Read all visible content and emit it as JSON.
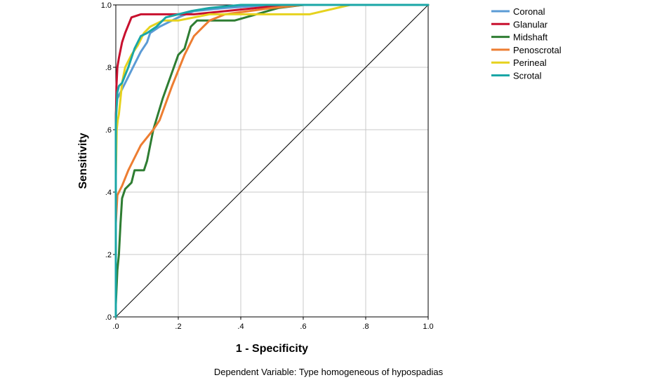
{
  "chart_data": {
    "type": "line",
    "title": "",
    "xlabel": "1 - Specificity",
    "ylabel": "Sensitivity",
    "footnote": "Dependent Variable: Type homogeneous of hypospadias",
    "xlim": [
      0,
      1
    ],
    "ylim": [
      0,
      1
    ],
    "grid": true,
    "legend_position": "top-right",
    "x_ticks": [
      0,
      0.2,
      0.4,
      0.6,
      0.8,
      1.0
    ],
    "x_tick_labels": [
      ".0",
      ".2",
      ".4",
      ".6",
      ".8",
      "1.0"
    ],
    "y_ticks": [
      0,
      0.2,
      0.4,
      0.6,
      0.8,
      1.0
    ],
    "y_tick_labels": [
      ".0",
      ".2",
      ".4",
      ".6",
      ".8",
      "1.0"
    ],
    "reference_line": {
      "x": [
        0,
        1
      ],
      "y": [
        0,
        1
      ],
      "color": "#000000"
    },
    "series": [
      {
        "name": "Coronal",
        "color": "#5b9bd5",
        "x": [
          0,
          0,
          0.005,
          0.02,
          0.04,
          0.06,
          0.08,
          0.1,
          0.11,
          0.14,
          0.2,
          0.25,
          0.35,
          0.5,
          0.6,
          1.0
        ],
        "y": [
          0,
          0.65,
          0.7,
          0.73,
          0.77,
          0.81,
          0.85,
          0.88,
          0.91,
          0.93,
          0.96,
          0.98,
          0.99,
          1.0,
          1.0,
          1.0
        ]
      },
      {
        "name": "Glanular",
        "color": "#c8102e",
        "x": [
          0,
          0,
          0.002,
          0.005,
          0.01,
          0.02,
          0.03,
          0.05,
          0.08,
          0.15,
          0.25,
          0.35,
          0.45,
          0.55,
          1.0
        ],
        "y": [
          0,
          0.62,
          0.74,
          0.8,
          0.83,
          0.88,
          0.91,
          0.96,
          0.97,
          0.97,
          0.97,
          0.98,
          0.99,
          1.0,
          1.0
        ]
      },
      {
        "name": "Midshaft",
        "color": "#2e7d32",
        "x": [
          0,
          0,
          0.005,
          0.01,
          0.015,
          0.02,
          0.03,
          0.05,
          0.06,
          0.09,
          0.1,
          0.12,
          0.15,
          0.2,
          0.22,
          0.24,
          0.26,
          0.3,
          0.38,
          0.45,
          0.52,
          0.6,
          1.0
        ],
        "y": [
          0,
          0.04,
          0.15,
          0.2,
          0.3,
          0.38,
          0.41,
          0.43,
          0.47,
          0.47,
          0.5,
          0.6,
          0.7,
          0.84,
          0.86,
          0.93,
          0.95,
          0.95,
          0.95,
          0.97,
          0.99,
          1.0,
          1.0
        ]
      },
      {
        "name": "Penoscrotal",
        "color": "#ed7d31",
        "x": [
          0,
          0,
          0.005,
          0.01,
          0.02,
          0.04,
          0.06,
          0.08,
          0.12,
          0.14,
          0.18,
          0.22,
          0.25,
          0.28,
          0.3,
          0.35,
          0.5,
          0.6,
          1.0
        ],
        "y": [
          0,
          0.3,
          0.39,
          0.4,
          0.42,
          0.47,
          0.51,
          0.55,
          0.6,
          0.63,
          0.74,
          0.84,
          0.9,
          0.93,
          0.95,
          0.97,
          0.99,
          1.0,
          1.0
        ]
      },
      {
        "name": "Perineal",
        "color": "#e6d21e",
        "x": [
          0,
          0,
          0.003,
          0.006,
          0.01,
          0.015,
          0.02,
          0.03,
          0.05,
          0.07,
          0.09,
          0.11,
          0.15,
          0.2,
          0.3,
          0.45,
          0.6,
          0.62,
          0.75,
          1.0
        ],
        "y": [
          0,
          0.45,
          0.6,
          0.63,
          0.65,
          0.7,
          0.75,
          0.8,
          0.84,
          0.87,
          0.91,
          0.93,
          0.95,
          0.95,
          0.97,
          0.97,
          0.97,
          0.97,
          1.0,
          1.0
        ]
      },
      {
        "name": "Scrotal",
        "color": "#1aa6a6",
        "x": [
          0,
          0,
          0.005,
          0.01,
          0.02,
          0.04,
          0.06,
          0.08,
          0.1,
          0.13,
          0.16,
          0.2,
          0.24,
          0.3,
          0.4,
          0.5,
          1.0
        ],
        "y": [
          0,
          0.62,
          0.72,
          0.74,
          0.75,
          0.8,
          0.86,
          0.9,
          0.91,
          0.93,
          0.96,
          0.97,
          0.98,
          0.99,
          1.0,
          1.0,
          1.0
        ]
      }
    ]
  }
}
